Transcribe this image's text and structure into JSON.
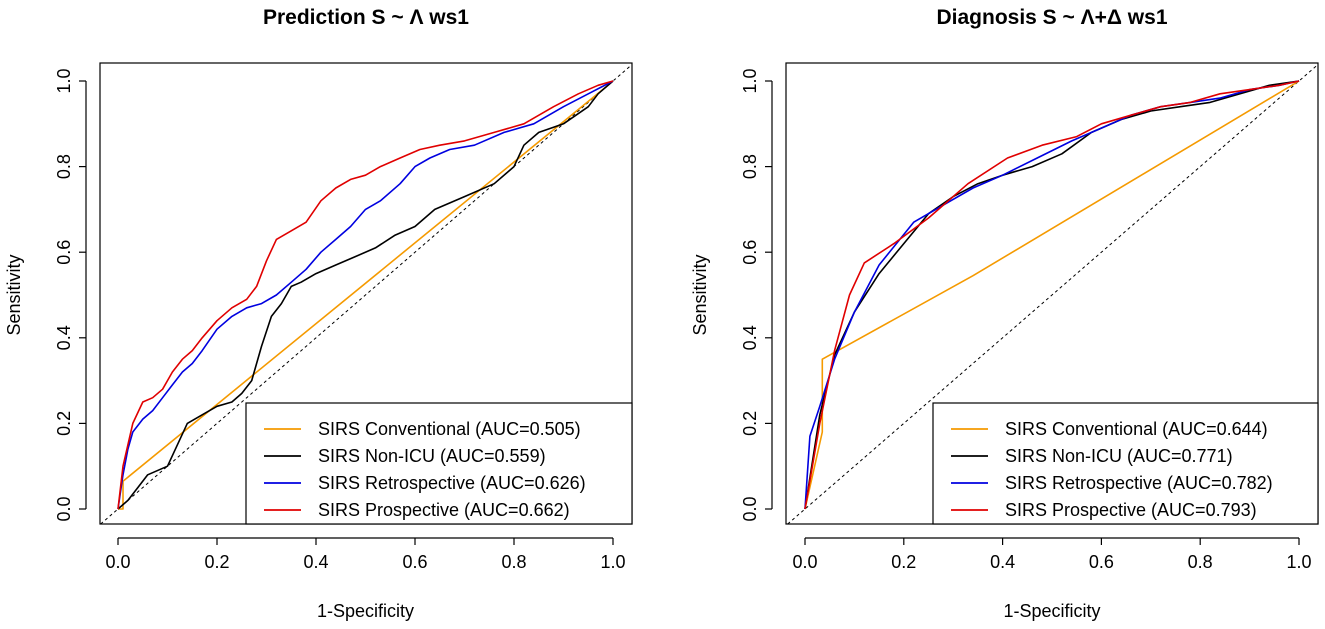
{
  "chart_data": [
    {
      "type": "line",
      "title": "Prediction",
      "formula": "S ~ Λ",
      "window": "ws1",
      "xlabel": "1-Specificity",
      "ylabel": "Sensitivity",
      "xlim": [
        0,
        1
      ],
      "ylim": [
        0,
        1
      ],
      "xticks": [
        "0.0",
        "0.2",
        "0.4",
        "0.6",
        "0.8",
        "1.0"
      ],
      "yticks": [
        "0.0",
        "0.2",
        "0.4",
        "0.6",
        "0.8",
        "1.0"
      ],
      "legend_position": "bottom-right",
      "series": [
        {
          "name": "SIRS Conventional (AUC=0.505)",
          "color": "#f59a00",
          "x": [
            0,
            0.01,
            0.01,
            0.99,
            1.0
          ],
          "y": [
            0,
            0.0,
            0.065,
            0.99,
            1.0
          ]
        },
        {
          "name": "SIRS Non-ICU (AUC=0.559)",
          "color": "#000000",
          "x": [
            0,
            0.02,
            0.04,
            0.06,
            0.1,
            0.12,
            0.14,
            0.17,
            0.2,
            0.23,
            0.25,
            0.27,
            0.29,
            0.31,
            0.33,
            0.35,
            0.37,
            0.4,
            0.44,
            0.48,
            0.52,
            0.56,
            0.6,
            0.64,
            0.7,
            0.76,
            0.8,
            0.82,
            0.85,
            0.9,
            0.95,
            0.97,
            1.0
          ],
          "y": [
            0,
            0.02,
            0.05,
            0.08,
            0.1,
            0.15,
            0.2,
            0.22,
            0.24,
            0.25,
            0.27,
            0.3,
            0.38,
            0.45,
            0.48,
            0.52,
            0.53,
            0.55,
            0.57,
            0.59,
            0.61,
            0.64,
            0.66,
            0.7,
            0.73,
            0.76,
            0.8,
            0.85,
            0.88,
            0.9,
            0.94,
            0.97,
            1.0
          ]
        },
        {
          "name": "SIRS Retrospective (AUC=0.626)",
          "color": "#0000e0",
          "x": [
            0,
            0.01,
            0.02,
            0.03,
            0.05,
            0.07,
            0.09,
            0.11,
            0.13,
            0.15,
            0.17,
            0.2,
            0.23,
            0.26,
            0.29,
            0.32,
            0.35,
            0.38,
            0.41,
            0.44,
            0.47,
            0.5,
            0.53,
            0.57,
            0.6,
            0.63,
            0.67,
            0.72,
            0.78,
            0.84,
            0.9,
            0.95,
            1.0
          ],
          "y": [
            0,
            0.08,
            0.14,
            0.18,
            0.21,
            0.23,
            0.26,
            0.29,
            0.32,
            0.34,
            0.37,
            0.42,
            0.45,
            0.47,
            0.48,
            0.5,
            0.53,
            0.56,
            0.6,
            0.63,
            0.66,
            0.7,
            0.72,
            0.76,
            0.8,
            0.82,
            0.84,
            0.85,
            0.88,
            0.9,
            0.94,
            0.97,
            1.0
          ]
        },
        {
          "name": "SIRS Prospective (AUC=0.662)",
          "color": "#e00000",
          "x": [
            0,
            0.01,
            0.02,
            0.03,
            0.05,
            0.07,
            0.09,
            0.11,
            0.13,
            0.15,
            0.17,
            0.2,
            0.23,
            0.26,
            0.28,
            0.3,
            0.32,
            0.35,
            0.38,
            0.41,
            0.44,
            0.47,
            0.5,
            0.53,
            0.57,
            0.61,
            0.65,
            0.7,
            0.76,
            0.82,
            0.88,
            0.93,
            0.97,
            1.0
          ],
          "y": [
            0,
            0.1,
            0.15,
            0.2,
            0.25,
            0.26,
            0.28,
            0.32,
            0.35,
            0.37,
            0.4,
            0.44,
            0.47,
            0.49,
            0.52,
            0.58,
            0.63,
            0.65,
            0.67,
            0.72,
            0.75,
            0.77,
            0.78,
            0.8,
            0.82,
            0.84,
            0.85,
            0.86,
            0.88,
            0.9,
            0.94,
            0.97,
            0.99,
            1.0
          ]
        }
      ]
    },
    {
      "type": "line",
      "title": "Diagnosis",
      "formula": "S ~ Λ+Δ",
      "window": "ws1",
      "xlabel": "1-Specificity",
      "ylabel": "Sensitivity",
      "xlim": [
        0,
        1
      ],
      "ylim": [
        0,
        1
      ],
      "xticks": [
        "0.0",
        "0.2",
        "0.4",
        "0.6",
        "0.8",
        "1.0"
      ],
      "yticks": [
        "0.0",
        "0.2",
        "0.4",
        "0.6",
        "0.8",
        "1.0"
      ],
      "legend_position": "bottom-right",
      "series": [
        {
          "name": "SIRS Conventional (AUC=0.644)",
          "color": "#f59a00",
          "x": [
            0,
            0.035,
            0.035,
            0.34,
            1.0
          ],
          "y": [
            0,
            0.18,
            0.35,
            0.545,
            1.0
          ]
        },
        {
          "name": "SIRS Non-ICU (AUC=0.771)",
          "color": "#000000",
          "x": [
            0,
            0.03,
            0.06,
            0.1,
            0.15,
            0.2,
            0.25,
            0.3,
            0.35,
            0.4,
            0.46,
            0.52,
            0.58,
            0.64,
            0.7,
            0.76,
            0.82,
            0.88,
            0.94,
            1.0
          ],
          "y": [
            0,
            0.22,
            0.36,
            0.46,
            0.55,
            0.62,
            0.69,
            0.73,
            0.76,
            0.78,
            0.8,
            0.83,
            0.88,
            0.91,
            0.93,
            0.94,
            0.95,
            0.97,
            0.99,
            1.0
          ]
        },
        {
          "name": "SIRS Retrospective (AUC=0.782)",
          "color": "#0000e0",
          "x": [
            0,
            0.01,
            0.03,
            0.06,
            0.1,
            0.15,
            0.22,
            0.28,
            0.34,
            0.4,
            0.47,
            0.54,
            0.6,
            0.66,
            0.72,
            0.78,
            0.84,
            0.9,
            0.96,
            1.0
          ],
          "y": [
            0,
            0.17,
            0.24,
            0.35,
            0.46,
            0.57,
            0.67,
            0.71,
            0.75,
            0.78,
            0.82,
            0.86,
            0.89,
            0.92,
            0.94,
            0.95,
            0.96,
            0.98,
            0.99,
            1.0
          ]
        },
        {
          "name": "SIRS Prospective (AUC=0.793)",
          "color": "#e00000",
          "x": [
            0,
            0.03,
            0.06,
            0.09,
            0.12,
            0.18,
            0.25,
            0.33,
            0.41,
            0.48,
            0.55,
            0.6,
            0.66,
            0.72,
            0.78,
            0.84,
            0.9,
            0.96,
            1.0
          ],
          "y": [
            0,
            0.2,
            0.37,
            0.5,
            0.575,
            0.62,
            0.68,
            0.76,
            0.82,
            0.85,
            0.87,
            0.9,
            0.92,
            0.94,
            0.95,
            0.97,
            0.98,
            0.99,
            1.0
          ]
        }
      ]
    }
  ]
}
